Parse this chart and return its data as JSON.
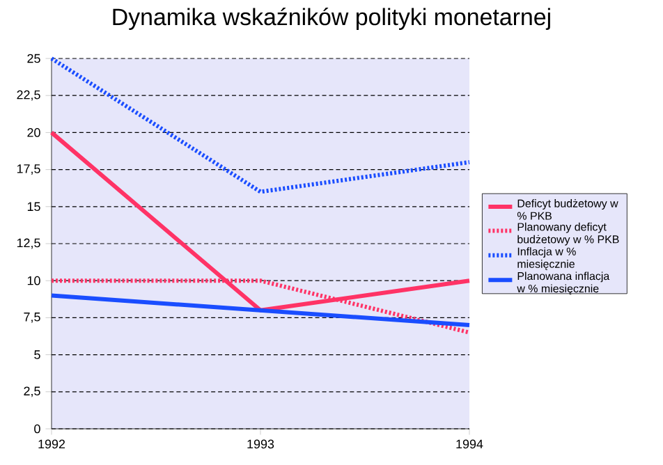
{
  "chart_data": {
    "type": "line",
    "title": "Dynamika wskaźników polityki monetarnej",
    "categories": [
      "1992",
      "1993",
      "1994"
    ],
    "ylim": [
      0,
      25
    ],
    "yticks": [
      0,
      {
        "value": 2.5,
        "label": "2,5"
      },
      5,
      {
        "value": 7.5,
        "label": "7,5"
      },
      10,
      {
        "value": 12.5,
        "label": "12,5"
      },
      15,
      {
        "value": 17.5,
        "label": "17,5"
      },
      20,
      {
        "value": 22.5,
        "label": "22,5"
      },
      25
    ],
    "grid": "y",
    "legend": "right",
    "series": [
      {
        "name": "Deficyt budżetowy w % PKB",
        "color": "#ff3366",
        "line_style": "solid",
        "values": [
          20,
          8,
          10
        ]
      },
      {
        "name": "Planowany deficyt budżetowy w % PKB",
        "color": "#ff3366",
        "line_style": "dotted",
        "values": [
          10,
          10,
          6.5
        ]
      },
      {
        "name": "Inflacja w % miesięcznie",
        "color": "#1a4dff",
        "line_style": "dotted",
        "values": [
          25,
          16,
          18
        ]
      },
      {
        "name": "Planowana inflacja w % miesięcznie",
        "color": "#1a4dff",
        "line_style": "solid",
        "values": [
          9,
          8,
          7
        ]
      }
    ]
  }
}
